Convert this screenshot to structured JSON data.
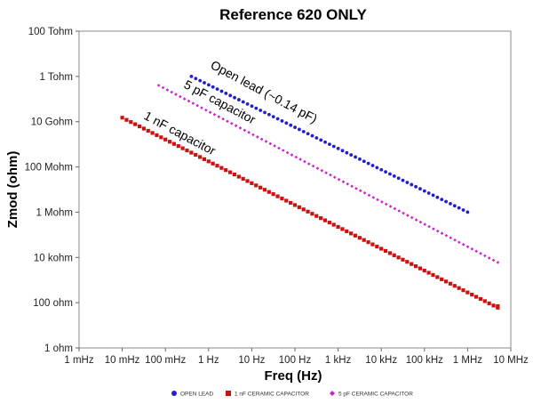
{
  "chart_data": {
    "type": "scatter",
    "title": "Reference 620 ONLY",
    "xlabel": "Freq (Hz)",
    "ylabel": "Zmod (ohm)",
    "x_scale": "log",
    "y_scale": "log",
    "xlim": [
      0.001,
      10000000
    ],
    "ylim": [
      1,
      100000000000000
    ],
    "grid": false,
    "legend_position": "bottom",
    "x_ticks": [
      {
        "value": 0.001,
        "label": "1 mHz"
      },
      {
        "value": 0.01,
        "label": "10 mHz"
      },
      {
        "value": 0.1,
        "label": "100 mHz"
      },
      {
        "value": 1,
        "label": "1 Hz"
      },
      {
        "value": 10,
        "label": "10 Hz"
      },
      {
        "value": 100,
        "label": "100 Hz"
      },
      {
        "value": 1000,
        "label": "1 kHz"
      },
      {
        "value": 10000,
        "label": "10 kHz"
      },
      {
        "value": 100000,
        "label": "100 kHz"
      },
      {
        "value": 1000000,
        "label": "1 MHz"
      },
      {
        "value": 10000000,
        "label": "10 MHz"
      }
    ],
    "y_ticks": [
      {
        "value": 1,
        "label": "1 ohm"
      },
      {
        "value": 100,
        "label": "100 ohm"
      },
      {
        "value": 10000,
        "label": "10 kohm"
      },
      {
        "value": 1000000,
        "label": "1 Mohm"
      },
      {
        "value": 100000000,
        "label": "100 Mohm"
      },
      {
        "value": 10000000000,
        "label": "10 Gohm"
      },
      {
        "value": 1000000000000,
        "label": "1 Tohm"
      },
      {
        "value": 100000000000000,
        "label": "100 Tohm"
      }
    ],
    "series": [
      {
        "name": "OPEN LEAD",
        "color": "#1f1fcf",
        "marker": "circle",
        "x_start": 0.4,
        "x_end": 1000000,
        "y_start": 1000000000000,
        "y_end": 1000000,
        "points_per_decade": 10
      },
      {
        "name": "1 nF CERAMIC CAPACITOR",
        "color": "#cc1111",
        "marker": "square",
        "x_start": 0.01,
        "x_end": 5000000,
        "y_start": 15000000000,
        "y_end": 60,
        "tail_x": 5000000,
        "tail_y": 70,
        "points_per_decade": 10
      },
      {
        "name": "5 pF CERAMIC CAPACITOR",
        "color": "#cc22cc",
        "marker": "diamond",
        "x_start": 0.07,
        "x_end": 5000000,
        "y_start": 400000000000,
        "y_end": 6000,
        "points_per_decade": 10
      }
    ],
    "annotations": [
      {
        "text": "Open lead (~0.14 pF)",
        "color": "#000000"
      },
      {
        "text": "5 pF capacitor",
        "color": "#000000"
      },
      {
        "text": "1 nF capacitor",
        "color": "#000000"
      }
    ]
  }
}
